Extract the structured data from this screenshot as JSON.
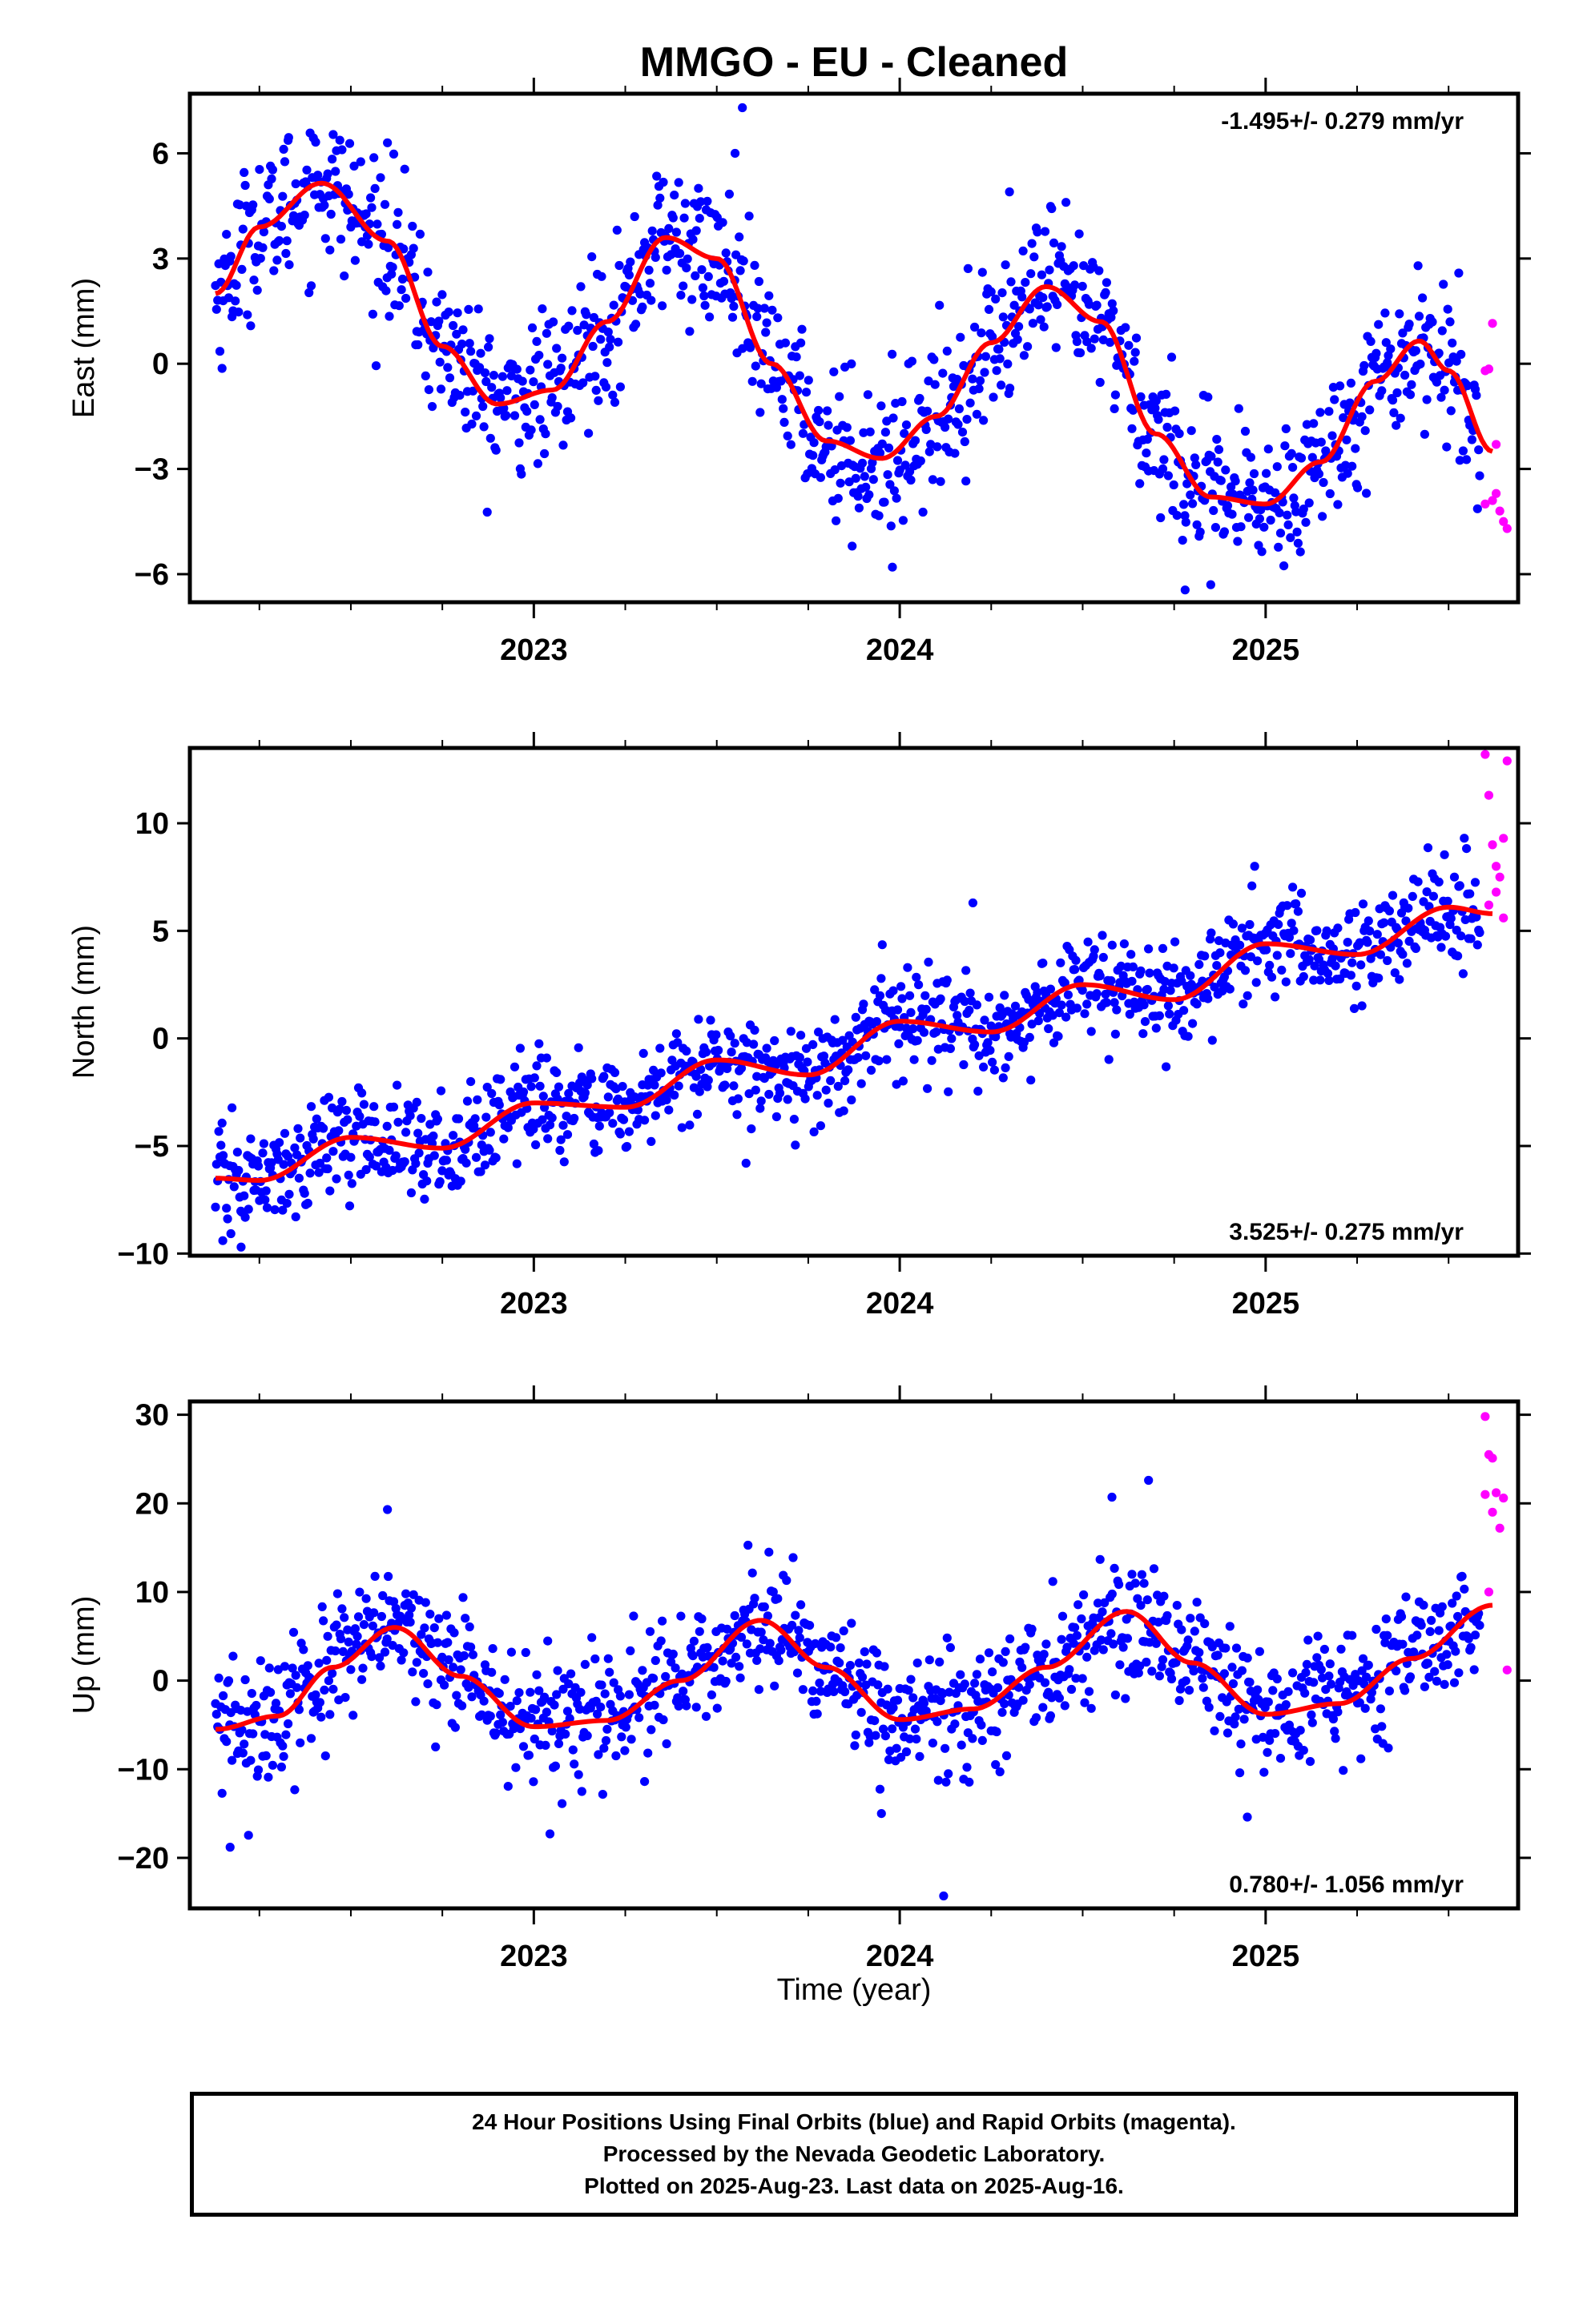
{
  "title": "MMGO  - EU - Cleaned",
  "xlabel": "Time (year)",
  "colors": {
    "final": "#0000ff",
    "rapid": "#ff00ff",
    "fit": "#ff0000"
  },
  "footer": {
    "line1": "24 Hour Positions Using Final Orbits (blue) and Rapid Orbits (magenta).",
    "line2": "Processed by the Nevada Geodetic Laboratory.",
    "line3": "Plotted on 2025-Aug-23. Last data on 2025-Aug-16."
  },
  "chart_data": [
    {
      "type": "scatter",
      "ylabel": "East (mm)",
      "rate_label": "-1.495+/- 0.279 mm/yr",
      "rate_position": "top-right",
      "xlim": [
        2022.06,
        2025.69
      ],
      "ylim": [
        -6.8,
        7.7
      ],
      "xticks": [
        2023,
        2024,
        2025
      ],
      "yticks": [
        -6,
        -3,
        0,
        3,
        6
      ],
      "fit": {
        "x": [
          2022.13,
          2022.25,
          2022.42,
          2022.6,
          2022.75,
          2022.9,
          2023.05,
          2023.2,
          2023.36,
          2023.5,
          2023.65,
          2023.8,
          2023.95,
          2024.1,
          2024.25,
          2024.4,
          2024.55,
          2024.7,
          2024.85,
          2025.0,
          2025.15,
          2025.3,
          2025.42,
          2025.5,
          2025.62
        ],
        "y": [
          2.0,
          3.9,
          5.15,
          3.5,
          0.5,
          -1.15,
          -0.75,
          1.2,
          3.6,
          3.0,
          0.0,
          -2.2,
          -2.7,
          -1.5,
          0.6,
          2.2,
          1.2,
          -2.0,
          -3.8,
          -4.0,
          -2.8,
          -0.5,
          0.65,
          -0.2,
          -2.5
        ]
      },
      "final_outliers": [
        [
          2022.33,
          6.45
        ],
        [
          2022.6,
          6.3
        ],
        [
          2023.55,
          6.0
        ],
        [
          2023.57,
          7.3
        ],
        [
          2023.87,
          -5.2
        ],
        [
          2023.98,
          -5.8
        ],
        [
          2024.3,
          4.9
        ],
        [
          2024.85,
          -6.3
        ],
        [
          2024.78,
          -6.45
        ]
      ],
      "rapid": {
        "x": [
          2025.6,
          2025.61,
          2025.62,
          2025.63,
          2025.6,
          2025.62,
          2025.63,
          2025.64,
          2025.65,
          2025.66
        ],
        "y": [
          -0.2,
          -0.15,
          1.15,
          -2.3,
          -4.0,
          -3.9,
          -3.7,
          -4.2,
          -4.5,
          -4.7
        ]
      }
    },
    {
      "type": "scatter",
      "ylabel": "North (mm)",
      "rate_label": "3.525+/- 0.275 mm/yr",
      "rate_position": "bottom-right",
      "xlim": [
        2022.06,
        2025.69
      ],
      "ylim": [
        -10.1,
        13.5
      ],
      "xticks": [
        2023,
        2024,
        2025
      ],
      "yticks": [
        -10,
        -5,
        0,
        5,
        10
      ],
      "fit": {
        "x": [
          2022.13,
          2022.25,
          2022.5,
          2022.75,
          2023.0,
          2023.25,
          2023.5,
          2023.75,
          2024.0,
          2024.25,
          2024.5,
          2024.75,
          2025.0,
          2025.25,
          2025.5,
          2025.62
        ],
        "y": [
          -6.5,
          -6.6,
          -4.6,
          -5.1,
          -3.0,
          -3.2,
          -1.0,
          -1.7,
          0.8,
          0.3,
          2.5,
          1.8,
          4.4,
          3.9,
          6.1,
          5.8
        ]
      },
      "final_outliers": [
        [
          2022.15,
          -9.4
        ],
        [
          2022.2,
          -9.7
        ],
        [
          2023.58,
          -5.8
        ],
        [
          2024.2,
          6.3
        ],
        [
          2024.97,
          8.0
        ]
      ],
      "rapid": {
        "x": [
          2025.6,
          2025.61,
          2025.62,
          2025.63,
          2025.64,
          2025.65,
          2025.66,
          2025.61,
          2025.63,
          2025.65
        ],
        "y": [
          13.2,
          11.3,
          9.0,
          8.0,
          7.5,
          9.3,
          12.9,
          6.2,
          6.8,
          5.6
        ]
      }
    },
    {
      "type": "scatter",
      "ylabel": "Up (mm)",
      "rate_label": "0.780+/- 1.056 mm/yr",
      "rate_position": "bottom-right",
      "xlim": [
        2022.06,
        2025.69
      ],
      "ylim": [
        -25.7,
        31.5
      ],
      "xticks": [
        2023,
        2024,
        2025
      ],
      "yticks": [
        -20,
        -10,
        0,
        10,
        20,
        30
      ],
      "fit": {
        "x": [
          2022.13,
          2022.3,
          2022.45,
          2022.62,
          2022.8,
          2023.0,
          2023.2,
          2023.4,
          2023.62,
          2023.8,
          2024.0,
          2024.2,
          2024.4,
          2024.62,
          2024.8,
          2025.0,
          2025.2,
          2025.4,
          2025.62
        ],
        "y": [
          -5.5,
          -4.0,
          1.5,
          6.0,
          0.5,
          -5.2,
          -4.5,
          0.0,
          6.8,
          1.5,
          -4.4,
          -3.2,
          1.5,
          7.8,
          2.0,
          -3.8,
          -2.6,
          2.5,
          8.5
        ]
      },
      "final_outliers": [
        [
          2022.17,
          -18.8
        ],
        [
          2022.6,
          19.3
        ],
        [
          2024.12,
          -24.3
        ],
        [
          2024.58,
          20.7
        ],
        [
          2024.68,
          22.6
        ],
        [
          2024.95,
          -15.4
        ],
        [
          2023.95,
          -15.0
        ]
      ],
      "rapid": {
        "x": [
          2025.6,
          2025.61,
          2025.62,
          2025.63,
          2025.6,
          2025.62,
          2025.64,
          2025.65,
          2025.61,
          2025.66
        ],
        "y": [
          29.8,
          25.5,
          25.1,
          21.2,
          21.0,
          19.0,
          17.2,
          20.6,
          10.0,
          1.2
        ]
      }
    }
  ]
}
